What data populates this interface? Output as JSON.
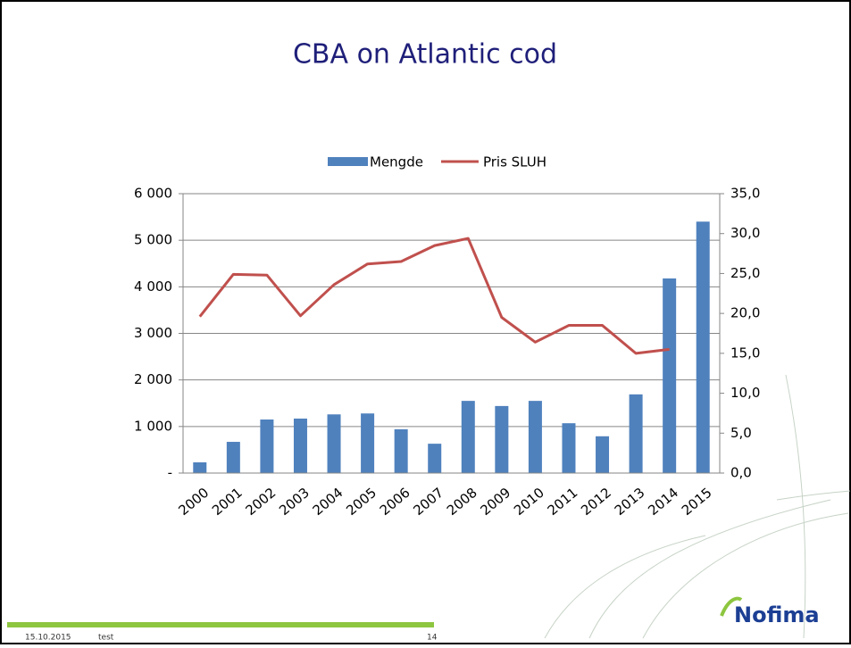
{
  "chart_data": {
    "type": "bar_line",
    "title": "CBA on Atlantic cod",
    "categories": [
      "2000",
      "2001",
      "2002",
      "2003",
      "2004",
      "2005",
      "2006",
      "2007",
      "2008",
      "2009",
      "2010",
      "2011",
      "2012",
      "2013",
      "2014",
      "2015"
    ],
    "series": [
      {
        "name": "Mengde",
        "type": "bar",
        "color": "#4f81bd",
        "values": [
          230,
          670,
          1150,
          1170,
          1260,
          1280,
          940,
          630,
          1550,
          1440,
          1550,
          1070,
          790,
          1690,
          4180,
          5400
        ]
      },
      {
        "name": "Pris SLUH",
        "type": "line",
        "axis": "y2",
        "color": "#c0504d",
        "values": [
          19.6,
          24.9,
          24.8,
          19.7,
          23.6,
          26.2,
          26.5,
          28.5,
          29.4,
          19.5,
          16.4,
          18.5,
          18.5,
          15.0,
          15.5,
          null
        ]
      }
    ],
    "ylim": [
      0,
      6000
    ],
    "yticks": [
      {
        "value": 0,
        "label": "-"
      },
      {
        "value": 1000,
        "label": "1 000"
      },
      {
        "value": 2000,
        "label": "2 000"
      },
      {
        "value": 3000,
        "label": "3 000"
      },
      {
        "value": 4000,
        "label": "4 000"
      },
      {
        "value": 5000,
        "label": "5 000"
      },
      {
        "value": 6000,
        "label": "6 000"
      }
    ],
    "y2lim": [
      0,
      35
    ],
    "y2ticks": [
      {
        "value": 0,
        "label": "0,0"
      },
      {
        "value": 5,
        "label": "5,0"
      },
      {
        "value": 10,
        "label": "10,0"
      },
      {
        "value": 15,
        "label": "15,0"
      },
      {
        "value": 20,
        "label": "20,0"
      },
      {
        "value": 25,
        "label": "25,0"
      },
      {
        "value": 30,
        "label": "30,0"
      },
      {
        "value": 35,
        "label": "35,0"
      }
    ],
    "grid": true,
    "legend": "top"
  },
  "footer": {
    "date": "15.10.2015",
    "label": "test",
    "page": "14",
    "logo": "Nofima"
  }
}
